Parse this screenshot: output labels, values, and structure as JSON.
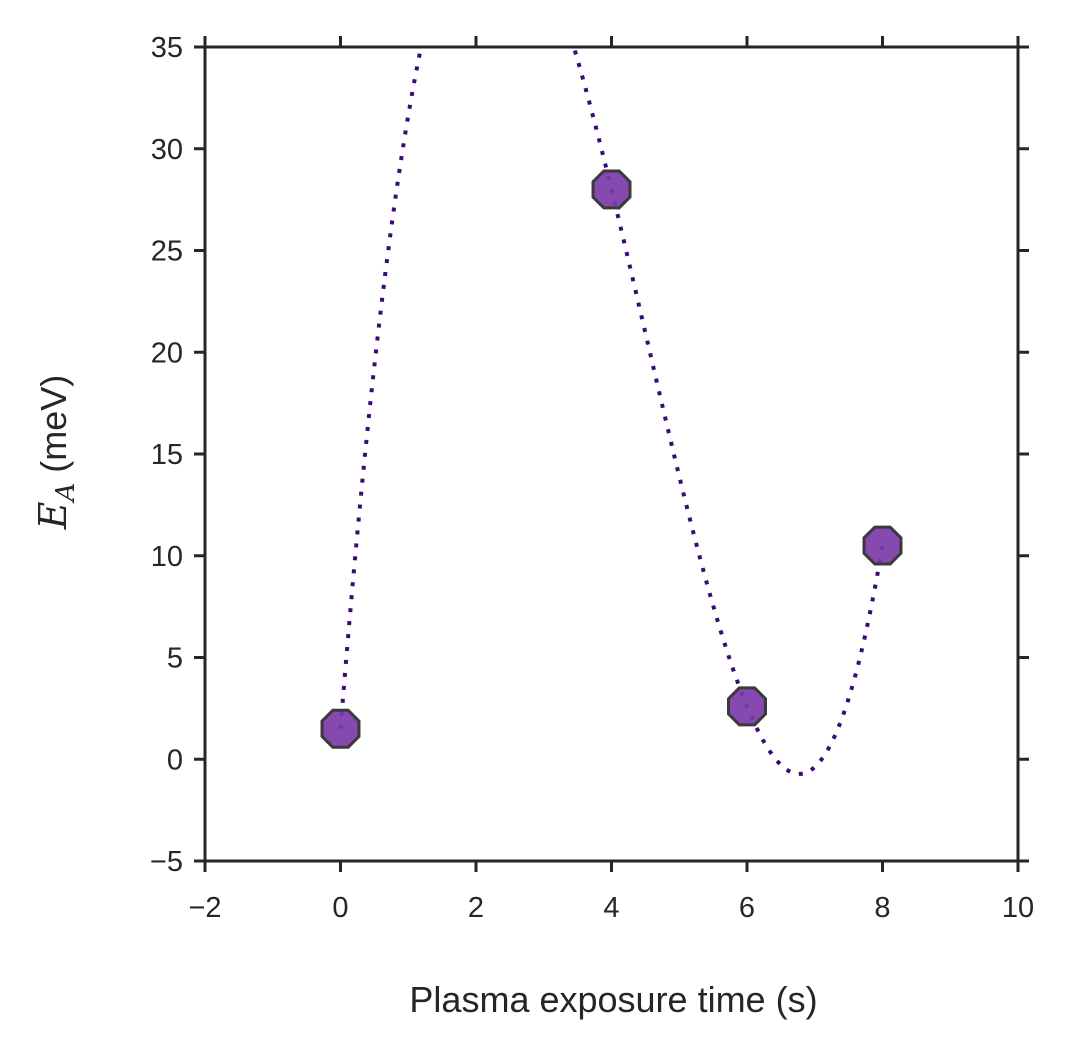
{
  "chart_data": {
    "type": "scatter",
    "title": "",
    "xlabel": "Plasma exposure time (s)",
    "ylabel": {
      "symbol": "E",
      "subscript": "A",
      "rest": " (meV)"
    },
    "xlim": [
      -2,
      10
    ],
    "ylim": [
      -5,
      35
    ],
    "xticks": [
      -2,
      0,
      2,
      4,
      6,
      8,
      10
    ],
    "yticks": [
      -5,
      0,
      5,
      10,
      15,
      20,
      25,
      30,
      35
    ],
    "xtick_labels": [
      "−2",
      "0",
      "2",
      "4",
      "6",
      "8",
      "10"
    ],
    "ytick_labels": [
      "−5",
      "0",
      "5",
      "10",
      "15",
      "20",
      "25",
      "30",
      "35"
    ],
    "grid": false,
    "legend": "none",
    "series": [
      {
        "kind": "points",
        "marker": "octagon",
        "color": "#7b3aa8",
        "edge_color": "#3a3a3a",
        "points": [
          {
            "x": 0,
            "y": 1.5
          },
          {
            "x": 4,
            "y": 28.0
          },
          {
            "x": 6,
            "y": 2.6
          },
          {
            "x": 8,
            "y": 10.5
          }
        ]
      },
      {
        "kind": "fit-curve",
        "style": "dotted",
        "color": "#3b0a78",
        "x_range": [
          0,
          8
        ],
        "interpolates": "points"
      }
    ]
  }
}
